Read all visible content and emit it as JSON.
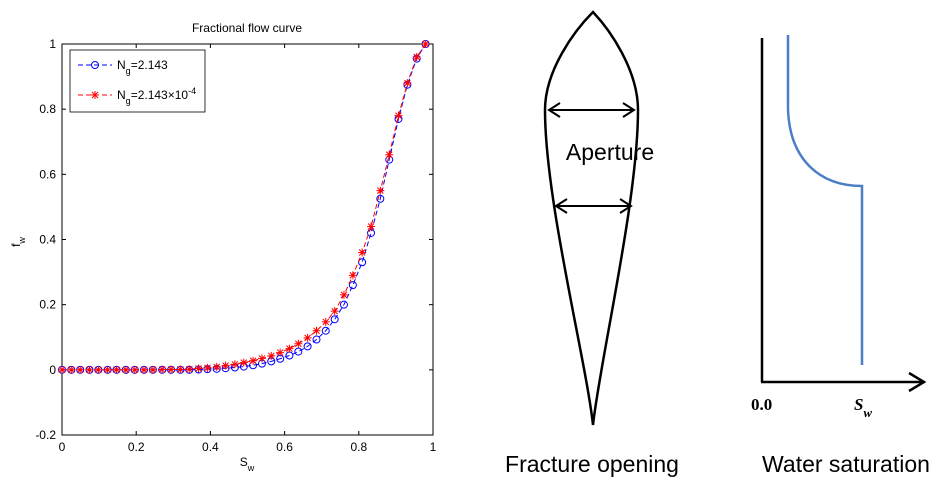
{
  "chart_data": {
    "type": "line",
    "title": "Fractional flow curve",
    "xlabel": "S_w",
    "ylabel": "f_w",
    "x": [
      0,
      0.025,
      0.049,
      0.074,
      0.098,
      0.123,
      0.147,
      0.172,
      0.196,
      0.221,
      0.245,
      0.27,
      0.294,
      0.319,
      0.343,
      0.368,
      0.392,
      0.417,
      0.441,
      0.466,
      0.49,
      0.515,
      0.539,
      0.564,
      0.588,
      0.613,
      0.637,
      0.662,
      0.686,
      0.711,
      0.735,
      0.76,
      0.784,
      0.809,
      0.833,
      0.858,
      0.882,
      0.907,
      0.931,
      0.956,
      0.98
    ],
    "series": [
      {
        "name": "N_g=2.143",
        "color": "#0000ff",
        "marker": "circle",
        "values": [
          0,
          0,
          0,
          0,
          0,
          0,
          0,
          0,
          0,
          0,
          0,
          0,
          0,
          0,
          0,
          0.001,
          0.002,
          0.003,
          0.005,
          0.007,
          0.01,
          0.014,
          0.019,
          0.026,
          0.034,
          0.044,
          0.056,
          0.072,
          0.093,
          0.12,
          0.155,
          0.2,
          0.26,
          0.33,
          0.42,
          0.525,
          0.645,
          0.77,
          0.875,
          0.955,
          1
        ]
      },
      {
        "name": "N_g=2.143×10^{-4}",
        "color": "#ff0000",
        "marker": "asterisk",
        "values": [
          0,
          0,
          0,
          0,
          0,
          0,
          0,
          0,
          0,
          0,
          0,
          0.001,
          0.001,
          0.001,
          0.002,
          0.004,
          0.006,
          0.009,
          0.013,
          0.017,
          0.022,
          0.028,
          0.035,
          0.043,
          0.053,
          0.065,
          0.08,
          0.098,
          0.12,
          0.147,
          0.18,
          0.23,
          0.29,
          0.36,
          0.44,
          0.55,
          0.66,
          0.78,
          0.88,
          0.96,
          1
        ]
      }
    ],
    "xlim": [
      0,
      1
    ],
    "xticks": [
      0,
      0.2,
      0.4,
      0.6,
      0.8,
      1
    ],
    "ylim": [
      -0.2,
      1
    ],
    "yticks": [
      -0.2,
      0,
      0.2,
      0.4,
      0.6,
      0.8,
      1
    ],
    "legend": "top-left"
  },
  "diagrams": {
    "aperture": "Aperture",
    "fracture_caption": "Fracture opening",
    "origin_label": "0.0",
    "axis_label": "S_w",
    "saturation_caption": "Water saturation"
  }
}
